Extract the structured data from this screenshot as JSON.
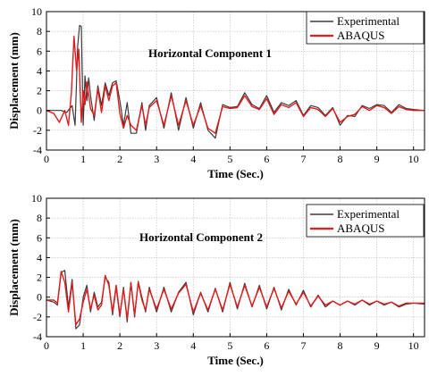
{
  "colors": {
    "experimental": "#3a3a3a",
    "abaqus": "#e41a1c",
    "grid": "#b8b8b8"
  },
  "chart_data": [
    {
      "type": "line",
      "title": "Horizontal Component 1",
      "xlabel": "Time (Sec.)",
      "ylabel": "Displacement (mm)",
      "xlim": [
        0,
        10.3
      ],
      "ylim": [
        -4,
        10
      ],
      "xticks": [
        0,
        1,
        2,
        3,
        4,
        5,
        6,
        7,
        8,
        9,
        10
      ],
      "yticks": [
        -4,
        -2,
        0,
        2,
        4,
        6,
        8,
        10
      ],
      "grid": true,
      "legend_position": "top-right",
      "series": [
        {
          "name": "Experimental",
          "x": [
            0,
            0.2,
            0.4,
            0.55,
            0.7,
            0.78,
            0.85,
            0.9,
            0.95,
            1.0,
            1.05,
            1.1,
            1.15,
            1.2,
            1.3,
            1.4,
            1.5,
            1.6,
            1.7,
            1.8,
            1.9,
            2.0,
            2.1,
            2.2,
            2.3,
            2.45,
            2.6,
            2.7,
            2.8,
            3.0,
            3.2,
            3.4,
            3.6,
            3.8,
            4.0,
            4.2,
            4.4,
            4.6,
            4.8,
            5.0,
            5.2,
            5.4,
            5.6,
            5.8,
            6.0,
            6.2,
            6.4,
            6.6,
            6.8,
            7.0,
            7.2,
            7.4,
            7.6,
            7.8,
            8.0,
            8.2,
            8.4,
            8.6,
            8.8,
            9.0,
            9.2,
            9.4,
            9.6,
            9.8,
            10.0,
            10.3
          ],
          "y": [
            0,
            0,
            0,
            -0.2,
            0.5,
            -1.5,
            6.5,
            8.6,
            8.5,
            -1.5,
            3.5,
            1.0,
            3.3,
            1.5,
            -1.0,
            2.5,
            0.5,
            2.8,
            1.5,
            2.8,
            3.0,
            1.0,
            -1.5,
            0.8,
            -2.3,
            -2.3,
            0.8,
            -2.0,
            0.5,
            1.3,
            -1.8,
            1.8,
            -2.0,
            1.3,
            -1.8,
            0.8,
            -2.0,
            -2.8,
            0.6,
            0.3,
            0.4,
            1.8,
            0.6,
            0.2,
            1.5,
            -0.2,
            0.8,
            0.5,
            1.0,
            -0.5,
            0.5,
            0.3,
            -0.5,
            0.3,
            -1.5,
            -0.5,
            -0.6,
            0.5,
            0.2,
            0.6,
            0.5,
            -0.2,
            0.6,
            0.2,
            0.1,
            0.0
          ]
        },
        {
          "name": "ABAQUS",
          "x": [
            0,
            0.2,
            0.35,
            0.5,
            0.6,
            0.68,
            0.75,
            0.82,
            0.88,
            0.95,
            1.0,
            1.05,
            1.1,
            1.2,
            1.3,
            1.4,
            1.5,
            1.6,
            1.7,
            1.8,
            1.9,
            2.0,
            2.1,
            2.2,
            2.3,
            2.45,
            2.6,
            2.7,
            2.8,
            3.0,
            3.2,
            3.4,
            3.6,
            3.8,
            4.0,
            4.2,
            4.4,
            4.6,
            4.8,
            5.0,
            5.2,
            5.4,
            5.6,
            5.8,
            6.0,
            6.2,
            6.4,
            6.6,
            6.8,
            7.0,
            7.2,
            7.4,
            7.6,
            7.8,
            8.0,
            8.2,
            8.4,
            8.6,
            8.8,
            9.0,
            9.2,
            9.4,
            9.6,
            9.8,
            10.0,
            10.3
          ],
          "y": [
            0,
            -0.3,
            -1.2,
            0,
            -1.5,
            1.8,
            7.5,
            4.0,
            6.2,
            -1.2,
            2.0,
            0.6,
            2.9,
            0.2,
            -0.5,
            2.2,
            -0.2,
            2.5,
            1.0,
            2.5,
            2.8,
            -0.3,
            -1.8,
            -0.5,
            -1.5,
            -2.0,
            0.5,
            -1.5,
            0.3,
            1.0,
            -1.5,
            1.5,
            -1.5,
            1.0,
            -1.5,
            0.5,
            -1.8,
            -2.3,
            0.4,
            0.2,
            0.3,
            1.5,
            0.4,
            0.1,
            1.2,
            -0.4,
            0.6,
            0.3,
            0.8,
            -0.6,
            0.3,
            0.1,
            -0.6,
            0.2,
            -1.2,
            -0.6,
            -0.4,
            0.4,
            0.0,
            0.5,
            0.3,
            -0.3,
            0.4,
            0.1,
            0.0,
            0.0
          ]
        }
      ]
    },
    {
      "type": "line",
      "title": "Horizontal Component 2",
      "xlabel": "Time (Sec.)",
      "ylabel": "Displacement (mm)",
      "xlim": [
        0,
        10.3
      ],
      "ylim": [
        -4,
        10
      ],
      "xticks": [
        0,
        1,
        2,
        3,
        4,
        5,
        6,
        7,
        8,
        9,
        10
      ],
      "yticks": [
        -4,
        -2,
        0,
        2,
        4,
        6,
        8,
        10
      ],
      "grid": true,
      "legend_position": "top-right",
      "series": [
        {
          "name": "Experimental",
          "x": [
            0,
            0.2,
            0.3,
            0.4,
            0.5,
            0.6,
            0.7,
            0.8,
            0.9,
            1.0,
            1.1,
            1.2,
            1.3,
            1.4,
            1.5,
            1.6,
            1.7,
            1.8,
            1.9,
            2.0,
            2.1,
            2.2,
            2.3,
            2.4,
            2.5,
            2.6,
            2.7,
            2.8,
            3.0,
            3.2,
            3.4,
            3.6,
            3.8,
            4.0,
            4.2,
            4.4,
            4.6,
            4.8,
            5.0,
            5.2,
            5.4,
            5.6,
            5.8,
            6.0,
            6.2,
            6.4,
            6.6,
            6.8,
            7.0,
            7.2,
            7.4,
            7.6,
            7.8,
            8.0,
            8.2,
            8.4,
            8.6,
            8.8,
            9.0,
            9.2,
            9.4,
            9.6,
            9.8,
            10.0,
            10.3
          ],
          "y": [
            -0.3,
            -0.5,
            -0.8,
            2.5,
            2.7,
            -1.0,
            1.8,
            -3.2,
            -2.8,
            0.0,
            1.2,
            -1.5,
            0.5,
            -1.0,
            -0.5,
            2.0,
            1.5,
            -1.8,
            1.0,
            -2.0,
            1.0,
            -2.5,
            1.5,
            -2.0,
            1.6,
            0.0,
            -1.5,
            1.0,
            -1.5,
            1.0,
            -1.5,
            0.5,
            1.5,
            -1.8,
            0.5,
            -1.5,
            0.9,
            -1.5,
            1.5,
            -1.2,
            1.4,
            -1.0,
            1.2,
            -1.2,
            1.0,
            -1.3,
            0.8,
            -0.8,
            0.7,
            -1.0,
            0.2,
            -1.0,
            -0.4,
            -0.8,
            -0.4,
            -0.8,
            -0.3,
            -0.8,
            -0.4,
            -0.8,
            -0.5,
            -1.0,
            -0.7,
            -0.6,
            -0.7
          ]
        },
        {
          "name": "ABAQUS",
          "x": [
            0,
            0.2,
            0.3,
            0.4,
            0.5,
            0.6,
            0.7,
            0.8,
            0.9,
            1.0,
            1.1,
            1.2,
            1.3,
            1.4,
            1.5,
            1.6,
            1.7,
            1.8,
            1.9,
            2.0,
            2.1,
            2.2,
            2.3,
            2.4,
            2.5,
            2.6,
            2.7,
            2.8,
            3.0,
            3.2,
            3.4,
            3.6,
            3.8,
            4.0,
            4.2,
            4.4,
            4.6,
            4.8,
            5.0,
            5.2,
            5.4,
            5.6,
            5.8,
            6.0,
            6.2,
            6.4,
            6.6,
            6.8,
            7.0,
            7.2,
            7.4,
            7.6,
            7.8,
            8.0,
            8.2,
            8.4,
            8.6,
            8.8,
            9.0,
            9.2,
            9.4,
            9.6,
            9.8,
            10.0,
            10.3
          ],
          "y": [
            -0.3,
            -0.3,
            -0.6,
            2.6,
            1.5,
            -1.5,
            1.5,
            -2.8,
            -2.2,
            -0.5,
            0.8,
            -1.2,
            0.2,
            -1.3,
            -0.8,
            2.2,
            1.2,
            -1.5,
            1.2,
            -1.8,
            0.8,
            -2.2,
            1.4,
            -1.8,
            1.5,
            -0.3,
            -1.3,
            0.8,
            -1.2,
            0.8,
            -1.2,
            0.4,
            1.3,
            -1.5,
            0.4,
            -1.3,
            0.8,
            -1.3,
            1.3,
            -1.0,
            1.2,
            -0.9,
            1.0,
            -1.0,
            0.9,
            -1.1,
            0.6,
            -0.7,
            0.5,
            -0.9,
            0.1,
            -0.8,
            -0.4,
            -0.8,
            -0.4,
            -0.7,
            -0.3,
            -0.7,
            -0.4,
            -0.7,
            -0.5,
            -0.9,
            -0.6,
            -0.6,
            -0.6
          ]
        }
      ]
    }
  ]
}
